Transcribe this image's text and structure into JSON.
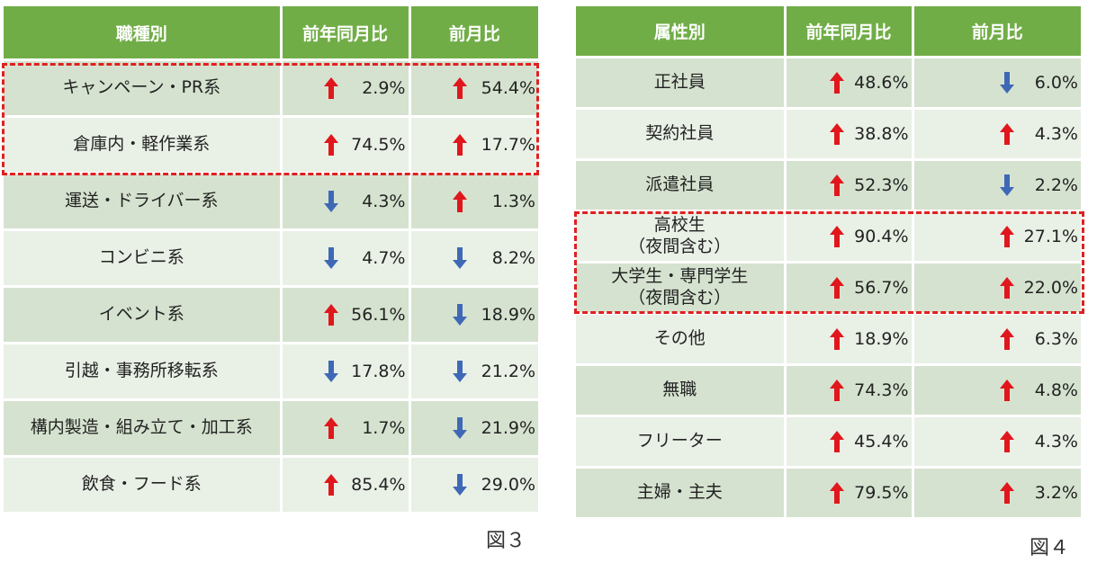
{
  "colors": {
    "header_bg": "#71ad47",
    "row_dark": "#d5e2cf",
    "row_light": "#e9f0e6",
    "up": "#e0171c",
    "down": "#3f69b6",
    "highlight_dash": "#e02020"
  },
  "figure3": {
    "caption": "図３",
    "headers": [
      "職種別",
      "前年同月比",
      "前月比"
    ],
    "rows": [
      {
        "label": "キャンペーン・PR系",
        "yoy": {
          "dir": "up",
          "value": "2.9%"
        },
        "mom": {
          "dir": "up",
          "value": "54.4%"
        }
      },
      {
        "label": "倉庫内・軽作業系",
        "yoy": {
          "dir": "up",
          "value": "74.5%"
        },
        "mom": {
          "dir": "up",
          "value": "17.7%"
        }
      },
      {
        "label": "運送・ドライバー系",
        "yoy": {
          "dir": "down",
          "value": "4.3%"
        },
        "mom": {
          "dir": "up",
          "value": "1.3%"
        }
      },
      {
        "label": "コンビニ系",
        "yoy": {
          "dir": "down",
          "value": "4.7%"
        },
        "mom": {
          "dir": "down",
          "value": "8.2%"
        }
      },
      {
        "label": "イベント系",
        "yoy": {
          "dir": "up",
          "value": "56.1%"
        },
        "mom": {
          "dir": "down",
          "value": "18.9%"
        }
      },
      {
        "label": "引越・事務所移転系",
        "yoy": {
          "dir": "down",
          "value": "17.8%"
        },
        "mom": {
          "dir": "down",
          "value": "21.2%"
        }
      },
      {
        "label": "構内製造・組み立て・加工系",
        "yoy": {
          "dir": "up",
          "value": "1.7%"
        },
        "mom": {
          "dir": "down",
          "value": "21.9%"
        }
      },
      {
        "label": "飲食・フード系",
        "yoy": {
          "dir": "up",
          "value": "85.4%"
        },
        "mom": {
          "dir": "down",
          "value": "29.0%"
        }
      }
    ]
  },
  "figure4": {
    "caption": "図４",
    "headers": [
      "属性別",
      "前年同月比",
      "前月比"
    ],
    "rows": [
      {
        "label": "正社員",
        "yoy": {
          "dir": "up",
          "value": "48.6%"
        },
        "mom": {
          "dir": "down",
          "value": "6.0%"
        }
      },
      {
        "label": "契約社員",
        "yoy": {
          "dir": "up",
          "value": "38.8%"
        },
        "mom": {
          "dir": "up",
          "value": "4.3%"
        }
      },
      {
        "label": "派遣社員",
        "yoy": {
          "dir": "up",
          "value": "52.3%"
        },
        "mom": {
          "dir": "down",
          "value": "2.2%"
        }
      },
      {
        "label": "高校生",
        "label2": "（夜間含む）",
        "yoy": {
          "dir": "up",
          "value": "90.4%"
        },
        "mom": {
          "dir": "up",
          "value": "27.1%"
        }
      },
      {
        "label": "大学生・専門学生",
        "label2": "（夜間含む）",
        "yoy": {
          "dir": "up",
          "value": "56.7%"
        },
        "mom": {
          "dir": "up",
          "value": "22.0%"
        }
      },
      {
        "label": "その他",
        "yoy": {
          "dir": "up",
          "value": "18.9%"
        },
        "mom": {
          "dir": "up",
          "value": "6.3%"
        }
      },
      {
        "label": "無職",
        "yoy": {
          "dir": "up",
          "value": "74.3%"
        },
        "mom": {
          "dir": "up",
          "value": "4.8%"
        }
      },
      {
        "label": "フリーター",
        "yoy": {
          "dir": "up",
          "value": "45.4%"
        },
        "mom": {
          "dir": "up",
          "value": "4.3%"
        }
      },
      {
        "label": "主婦・主夫",
        "yoy": {
          "dir": "up",
          "value": "79.5%"
        },
        "mom": {
          "dir": "up",
          "value": "3.2%"
        }
      }
    ]
  }
}
